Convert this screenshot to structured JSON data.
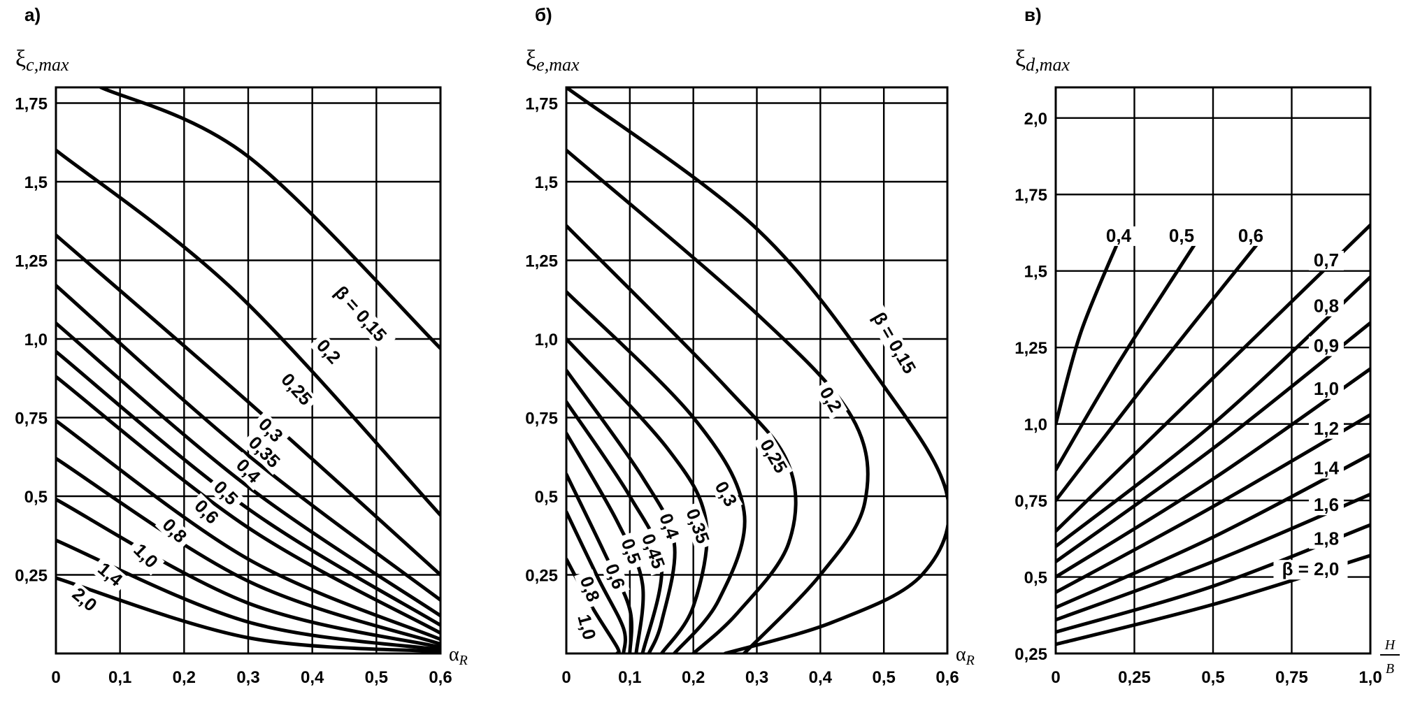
{
  "chart_data": [
    {
      "type": "line",
      "panel": "а)",
      "ylabel": {
        "base": "ξ",
        "sub": "c,max"
      },
      "xlabel": {
        "base": "α",
        "sub": "R"
      },
      "xlim": [
        0,
        0.6
      ],
      "ylim": [
        0,
        1.8
      ],
      "xticks": [
        0,
        0.1,
        0.2,
        0.3,
        0.4,
        0.5,
        0.6
      ],
      "xtick_labels": [
        "0",
        "0,1",
        "0,2",
        "0,3",
        "0,4",
        "0,5",
        "0,6"
      ],
      "yticks": [
        0.25,
        0.5,
        0.75,
        1.0,
        1.25,
        1.5,
        1.75
      ],
      "ytick_labels": [
        "0,25",
        "0,5",
        "0,75",
        "1,0",
        "1,25",
        "1,5",
        "1,75"
      ],
      "grid": true,
      "series": [
        {
          "name": "β = 0,15",
          "points": [
            [
              0.07,
              1.8
            ],
            [
              0.3,
              1.58
            ],
            [
              0.6,
              0.97
            ]
          ]
        },
        {
          "name": "0,2",
          "points": [
            [
              0.0,
              1.6
            ],
            [
              0.28,
              1.15
            ],
            [
              0.6,
              0.44
            ]
          ]
        },
        {
          "name": "0,25",
          "points": [
            [
              0.0,
              1.33
            ],
            [
              0.3,
              0.8
            ],
            [
              0.6,
              0.25
            ]
          ]
        },
        {
          "name": "0,3",
          "points": [
            [
              0.0,
              1.17
            ],
            [
              0.3,
              0.63
            ],
            [
              0.6,
              0.17
            ]
          ]
        },
        {
          "name": "0,35",
          "points": [
            [
              0.0,
              1.05
            ],
            [
              0.3,
              0.53
            ],
            [
              0.6,
              0.12
            ]
          ]
        },
        {
          "name": "0,4",
          "points": [
            [
              0.0,
              0.96
            ],
            [
              0.3,
              0.46
            ],
            [
              0.6,
              0.09
            ]
          ]
        },
        {
          "name": "0,5",
          "points": [
            [
              0.0,
              0.88
            ],
            [
              0.3,
              0.4
            ],
            [
              0.6,
              0.065
            ]
          ]
        },
        {
          "name": "0,6",
          "points": [
            [
              0.0,
              0.74
            ],
            [
              0.3,
              0.3
            ],
            [
              0.6,
              0.045
            ]
          ]
        },
        {
          "name": "0,8",
          "points": [
            [
              0.0,
              0.62
            ],
            [
              0.3,
              0.23
            ],
            [
              0.6,
              0.03
            ]
          ]
        },
        {
          "name": "1,0",
          "points": [
            [
              0.0,
              0.49
            ],
            [
              0.3,
              0.16
            ],
            [
              0.6,
              0.02
            ]
          ]
        },
        {
          "name": "1,4",
          "points": [
            [
              0.0,
              0.36
            ],
            [
              0.3,
              0.1
            ],
            [
              0.6,
              0.012
            ]
          ]
        },
        {
          "name": "2,0",
          "points": [
            [
              0.0,
              0.24
            ],
            [
              0.3,
              0.05
            ],
            [
              0.6,
              0.006
            ]
          ]
        }
      ],
      "curve_labels": [
        {
          "text": "β = 0,15",
          "x": 0.47,
          "y": 1.07,
          "rotate": 48
        },
        {
          "text": "0,2",
          "x": 0.42,
          "y": 0.95,
          "rotate": 48
        },
        {
          "text": "0,25",
          "x": 0.37,
          "y": 0.83,
          "rotate": 48
        },
        {
          "text": "0,3",
          "x": 0.33,
          "y": 0.7,
          "rotate": 45
        },
        {
          "text": "0,35",
          "x": 0.32,
          "y": 0.63,
          "rotate": 45
        },
        {
          "text": "0,4",
          "x": 0.295,
          "y": 0.57,
          "rotate": 45
        },
        {
          "text": "0,5",
          "x": 0.26,
          "y": 0.5,
          "rotate": 45
        },
        {
          "text": "0,6",
          "x": 0.23,
          "y": 0.44,
          "rotate": 45
        },
        {
          "text": "0,8",
          "x": 0.18,
          "y": 0.38,
          "rotate": 45
        },
        {
          "text": "1,0",
          "x": 0.135,
          "y": 0.3,
          "rotate": 45
        },
        {
          "text": "1,4",
          "x": 0.08,
          "y": 0.24,
          "rotate": 40
        },
        {
          "text": "2,0",
          "x": 0.04,
          "y": 0.16,
          "rotate": 40
        }
      ]
    },
    {
      "type": "line",
      "panel": "б)",
      "ylabel": {
        "base": "ξ",
        "sub": "e,max"
      },
      "xlabel": {
        "base": "α",
        "sub": "R"
      },
      "xlim": [
        0,
        0.6
      ],
      "ylim": [
        0,
        1.8
      ],
      "xticks": [
        0,
        0.1,
        0.2,
        0.3,
        0.4,
        0.5,
        0.6
      ],
      "xtick_labels": [
        "0",
        "0,1",
        "0,2",
        "0,3",
        "0,4",
        "0,5",
        "0,6"
      ],
      "yticks": [
        0.25,
        0.5,
        0.75,
        1.0,
        1.25,
        1.5,
        1.75
      ],
      "ytick_labels": [
        "0,25",
        "0,5",
        "0,75",
        "1,0",
        "1,25",
        "1,5",
        "1,75"
      ],
      "grid": true,
      "series": [
        {
          "name": "β = 0,15",
          "points": [
            [
              0.0,
              1.8
            ],
            [
              0.3,
              1.35
            ],
            [
              0.5,
              0.85
            ],
            [
              0.6,
              0.5
            ],
            [
              0.56,
              0.25
            ],
            [
              0.42,
              0.1
            ],
            [
              0.25,
              0.0
            ]
          ]
        },
        {
          "name": "0,2",
          "points": [
            [
              0.0,
              1.6
            ],
            [
              0.3,
              1.08
            ],
            [
              0.45,
              0.75
            ],
            [
              0.47,
              0.48
            ],
            [
              0.4,
              0.25
            ],
            [
              0.28,
              0.0
            ]
          ]
        },
        {
          "name": "0,25",
          "points": [
            [
              0.0,
              1.36
            ],
            [
              0.25,
              0.85
            ],
            [
              0.35,
              0.6
            ],
            [
              0.35,
              0.35
            ],
            [
              0.27,
              0.13
            ],
            [
              0.2,
              0.0
            ]
          ]
        },
        {
          "name": "0,3",
          "points": [
            [
              0.0,
              1.15
            ],
            [
              0.2,
              0.75
            ],
            [
              0.28,
              0.45
            ],
            [
              0.24,
              0.17
            ],
            [
              0.17,
              0.0
            ]
          ]
        },
        {
          "name": "0,35",
          "points": [
            [
              0.0,
              1.0
            ],
            [
              0.16,
              0.65
            ],
            [
              0.22,
              0.42
            ],
            [
              0.2,
              0.15
            ],
            [
              0.15,
              0.0
            ]
          ]
        },
        {
          "name": "0,4",
          "points": [
            [
              0.0,
              0.9
            ],
            [
              0.12,
              0.56
            ],
            [
              0.17,
              0.35
            ],
            [
              0.15,
              0.1
            ],
            [
              0.13,
              0.0
            ]
          ]
        },
        {
          "name": "0,45",
          "points": [
            [
              0.0,
              0.8
            ],
            [
              0.1,
              0.5
            ],
            [
              0.15,
              0.28
            ],
            [
              0.12,
              0.0
            ]
          ]
        },
        {
          "name": "0,5",
          "points": [
            [
              0.0,
              0.7
            ],
            [
              0.08,
              0.42
            ],
            [
              0.12,
              0.22
            ],
            [
              0.11,
              0.0
            ]
          ]
        },
        {
          "name": "0,6",
          "points": [
            [
              0.0,
              0.57
            ],
            [
              0.06,
              0.32
            ],
            [
              0.1,
              0.14
            ],
            [
              0.1,
              0.0
            ]
          ]
        },
        {
          "name": "0,8",
          "points": [
            [
              0.0,
              0.45
            ],
            [
              0.05,
              0.24
            ],
            [
              0.09,
              0.08
            ],
            [
              0.09,
              0.0
            ]
          ]
        },
        {
          "name": "1,0",
          "points": [
            [
              0.0,
              0.3
            ],
            [
              0.04,
              0.15
            ],
            [
              0.08,
              0.02
            ],
            [
              0.08,
              0.0
            ]
          ]
        }
      ],
      "curve_labels": [
        {
          "text": "β = 0,15",
          "x": 0.51,
          "y": 0.98,
          "rotate": 60
        },
        {
          "text": "0,2",
          "x": 0.41,
          "y": 0.8,
          "rotate": 60
        },
        {
          "text": "0,25",
          "x": 0.32,
          "y": 0.62,
          "rotate": 60
        },
        {
          "text": "0,3",
          "x": 0.245,
          "y": 0.5,
          "rotate": 60
        },
        {
          "text": "0,35",
          "x": 0.2,
          "y": 0.4,
          "rotate": 70
        },
        {
          "text": "0,4",
          "x": 0.155,
          "y": 0.4,
          "rotate": 70
        },
        {
          "text": "0,45",
          "x": 0.13,
          "y": 0.32,
          "rotate": 70
        },
        {
          "text": "0,5",
          "x": 0.095,
          "y": 0.32,
          "rotate": 70
        },
        {
          "text": "0,6",
          "x": 0.07,
          "y": 0.24,
          "rotate": 70
        },
        {
          "text": "0,8",
          "x": 0.03,
          "y": 0.2,
          "rotate": 70
        },
        {
          "text": "1,0",
          "x": 0.025,
          "y": 0.08,
          "rotate": 75
        }
      ]
    },
    {
      "type": "line",
      "panel": "в)",
      "ylabel": {
        "base": "ξ",
        "sub": "d,max"
      },
      "xlabel": {
        "numerator": "H",
        "denominator": "B"
      },
      "xlim": [
        0,
        1.0
      ],
      "ylim": [
        0.25,
        2.1
      ],
      "xticks": [
        0,
        0.25,
        0.5,
        0.75,
        1.0
      ],
      "xtick_labels": [
        "0",
        "0,25",
        "0,5",
        "0,75",
        "1,0"
      ],
      "yticks": [
        0.25,
        0.5,
        0.75,
        1.0,
        1.25,
        1.5,
        1.75,
        2.0
      ],
      "ytick_labels": [
        "0,25",
        "0,5",
        "0,75",
        "1,0",
        "1,25",
        "1,5",
        "1,75",
        "2,0"
      ],
      "grid": true,
      "series": [
        {
          "name": "0,4",
          "points": [
            [
              0.0,
              1.0
            ],
            [
              0.08,
              1.3
            ],
            [
              0.2,
              1.6
            ]
          ]
        },
        {
          "name": "0,5",
          "points": [
            [
              0.0,
              0.85
            ],
            [
              0.2,
              1.2
            ],
            [
              0.45,
              1.6
            ]
          ]
        },
        {
          "name": "0,6",
          "points": [
            [
              0.0,
              0.75
            ],
            [
              0.3,
              1.15
            ],
            [
              0.65,
              1.6
            ]
          ]
        },
        {
          "name": "0,7",
          "points": [
            [
              0.0,
              0.65
            ],
            [
              0.4,
              1.05
            ],
            [
              1.0,
              1.65
            ]
          ]
        },
        {
          "name": "0,8",
          "points": [
            [
              0.0,
              0.6
            ],
            [
              0.5,
              1.0
            ],
            [
              1.0,
              1.48
            ]
          ]
        },
        {
          "name": "0,9",
          "points": [
            [
              0.0,
              0.55
            ],
            [
              0.5,
              0.92
            ],
            [
              1.0,
              1.33
            ]
          ]
        },
        {
          "name": "1,0",
          "points": [
            [
              0.0,
              0.5
            ],
            [
              0.5,
              0.82
            ],
            [
              1.0,
              1.18
            ]
          ]
        },
        {
          "name": "1,2",
          "points": [
            [
              0.0,
              0.45
            ],
            [
              0.5,
              0.73
            ],
            [
              1.0,
              1.03
            ]
          ]
        },
        {
          "name": "1,4",
          "points": [
            [
              0.0,
              0.4
            ],
            [
              0.5,
              0.63
            ],
            [
              1.0,
              0.9
            ]
          ]
        },
        {
          "name": "1,6",
          "points": [
            [
              0.0,
              0.36
            ],
            [
              0.5,
              0.55
            ],
            [
              1.0,
              0.77
            ]
          ]
        },
        {
          "name": "1,8",
          "points": [
            [
              0.0,
              0.32
            ],
            [
              0.5,
              0.47
            ],
            [
              1.0,
              0.67
            ]
          ]
        },
        {
          "name": "β = 2,0",
          "points": [
            [
              0.0,
              0.28
            ],
            [
              0.5,
              0.41
            ],
            [
              1.0,
              0.57
            ]
          ]
        }
      ],
      "curve_labels": [
        {
          "text": "0,4",
          "x": 0.2,
          "y": 1.6,
          "rotate": 0
        },
        {
          "text": "0,5",
          "x": 0.4,
          "y": 1.6,
          "rotate": 0
        },
        {
          "text": "0,6",
          "x": 0.62,
          "y": 1.6,
          "rotate": 0
        },
        {
          "text": "0,7",
          "x": 0.86,
          "y": 1.52,
          "rotate": 0
        },
        {
          "text": "0,8",
          "x": 0.86,
          "y": 1.37,
          "rotate": 0
        },
        {
          "text": "0,9",
          "x": 0.86,
          "y": 1.24,
          "rotate": 0
        },
        {
          "text": "1,0",
          "x": 0.86,
          "y": 1.1,
          "rotate": 0
        },
        {
          "text": "1,2",
          "x": 0.86,
          "y": 0.97,
          "rotate": 0
        },
        {
          "text": "1,4",
          "x": 0.86,
          "y": 0.84,
          "rotate": 0
        },
        {
          "text": "1,6",
          "x": 0.86,
          "y": 0.72,
          "rotate": 0
        },
        {
          "text": "1,8",
          "x": 0.86,
          "y": 0.61,
          "rotate": 0
        },
        {
          "text": "β = 2,0",
          "x": 0.81,
          "y": 0.51,
          "rotate": 0
        }
      ]
    }
  ]
}
